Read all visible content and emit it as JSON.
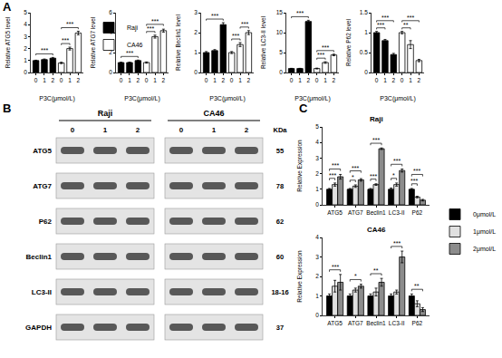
{
  "panel_labels": [
    "A",
    "B",
    "C"
  ],
  "chart_data": [
    {
      "type": "bar",
      "y_label": "Relative ATG5 level",
      "x_label": "P3C(μmol/L)",
      "categories": [
        "0",
        "1",
        "2",
        "0",
        "1",
        "2"
      ],
      "series": [
        {
          "name": "Raji",
          "color": "#000000",
          "values": [
            1.0,
            1.08,
            1.2,
            null,
            null,
            null
          ],
          "errors": [
            0.03,
            0.05,
            0.06,
            null,
            null,
            null
          ]
        },
        {
          "name": "CA46",
          "color": "#ffffff",
          "values": [
            null,
            null,
            null,
            0.8,
            2.0,
            3.3
          ],
          "errors": [
            null,
            null,
            null,
            0.06,
            0.12,
            0.15
          ]
        }
      ],
      "ylim": [
        0,
        5
      ],
      "yticks": [
        0,
        1,
        2,
        3,
        4,
        5
      ],
      "legend": "right",
      "significance": [
        {
          "from": [
            0,
            0
          ],
          "to": [
            2,
            0
          ],
          "label": "***"
        },
        {
          "from": [
            3,
            1
          ],
          "to": [
            4,
            1
          ],
          "label": "***"
        },
        {
          "from": [
            3,
            1
          ],
          "to": [
            5,
            1
          ],
          "label": "***"
        }
      ]
    },
    {
      "type": "bar",
      "y_label": "Relative ATG7 level",
      "x_label": "P3C(μmol/L)",
      "categories": [
        "0",
        "1",
        "2",
        "0",
        "1",
        "2"
      ],
      "series": [
        {
          "name": "Raji",
          "color": "#000000",
          "values": [
            1.0,
            1.0,
            1.2,
            null,
            null,
            null
          ],
          "errors": [
            0.03,
            0.04,
            0.05,
            null,
            null,
            null
          ]
        },
        {
          "name": "CA46",
          "color": "#ffffff",
          "values": [
            null,
            null,
            null,
            1.0,
            3.6,
            4.2
          ],
          "errors": [
            null,
            null,
            null,
            0.06,
            0.15,
            0.15
          ]
        }
      ],
      "ylim": [
        0,
        6
      ],
      "yticks": [
        0,
        2,
        4,
        6
      ],
      "significance": [
        {
          "from": [
            0,
            0
          ],
          "to": [
            2,
            0
          ],
          "label": "***"
        },
        {
          "from": [
            3,
            1
          ],
          "to": [
            4,
            1
          ],
          "label": "***"
        },
        {
          "from": [
            3,
            1
          ],
          "to": [
            5,
            1
          ],
          "label": "***"
        }
      ]
    },
    {
      "type": "bar",
      "y_label": "Relative Beclin1 level",
      "x_label": "P3C(μmol/L)",
      "categories": [
        "0",
        "1",
        "2",
        "0",
        "1",
        "2"
      ],
      "series": [
        {
          "name": "Raji",
          "color": "#000000",
          "values": [
            1.0,
            1.1,
            2.4,
            null,
            null,
            null
          ],
          "errors": [
            0.05,
            0.05,
            0.1,
            null,
            null,
            null
          ]
        },
        {
          "name": "CA46",
          "color": "#ffffff",
          "values": [
            null,
            null,
            null,
            1.0,
            1.4,
            2.0
          ],
          "errors": [
            null,
            null,
            null,
            0.05,
            0.1,
            0.1
          ]
        }
      ],
      "ylim": [
        0,
        3
      ],
      "yticks": [
        0,
        1,
        2,
        3
      ],
      "significance": [
        {
          "from": [
            0,
            0
          ],
          "to": [
            2,
            0
          ],
          "label": "***"
        },
        {
          "from": [
            3,
            1
          ],
          "to": [
            4,
            1
          ],
          "label": "***"
        },
        {
          "from": [
            4,
            1
          ],
          "to": [
            5,
            1
          ],
          "label": "***"
        }
      ]
    },
    {
      "type": "bar",
      "y_label": "Relative LC3-II level",
      "x_label": "P3C(μmol/L)",
      "categories": [
        "0",
        "1",
        "2",
        "0",
        "1",
        "2"
      ],
      "series": [
        {
          "name": "Raji",
          "color": "#000000",
          "values": [
            1.0,
            1.0,
            12.8,
            null,
            null,
            null
          ],
          "errors": [
            0.05,
            0.05,
            0.3,
            null,
            null,
            null
          ]
        },
        {
          "name": "CA46",
          "color": "#ffffff",
          "values": [
            null,
            null,
            null,
            1.0,
            2.5,
            4.4
          ],
          "errors": [
            null,
            null,
            null,
            0.1,
            0.2,
            0.2
          ]
        }
      ],
      "ylim": [
        0,
        15
      ],
      "yticks": [
        0,
        5,
        10,
        15
      ],
      "significance": [
        {
          "from": [
            0,
            0
          ],
          "to": [
            2,
            0
          ],
          "label": "***"
        },
        {
          "from": [
            3,
            1
          ],
          "to": [
            4,
            1
          ],
          "label": "***"
        },
        {
          "from": [
            3,
            1
          ],
          "to": [
            5,
            1
          ],
          "label": "***"
        }
      ]
    },
    {
      "type": "bar",
      "y_label": "Relative P62 level",
      "x_label": "P3C(μmol/L)",
      "categories": [
        "0",
        "1",
        "2",
        "0",
        "1",
        "2"
      ],
      "series": [
        {
          "name": "Raji",
          "color": "#000000",
          "values": [
            1.0,
            0.8,
            0.45,
            null,
            null,
            null
          ],
          "errors": [
            0.03,
            0.03,
            0.03,
            null,
            null,
            null
          ]
        },
        {
          "name": "CA46",
          "color": "#ffffff",
          "values": [
            null,
            null,
            null,
            1.0,
            0.7,
            0.3
          ],
          "errors": [
            null,
            null,
            null,
            0.03,
            0.1,
            0.03
          ]
        }
      ],
      "ylim": [
        0,
        1.5
      ],
      "yticks": [
        0,
        0.5,
        1,
        1.5
      ],
      "significance": [
        {
          "from": [
            0,
            0
          ],
          "to": [
            1,
            0
          ],
          "label": "***"
        },
        {
          "from": [
            0,
            0
          ],
          "to": [
            2,
            0
          ],
          "label": "***"
        },
        {
          "from": [
            3,
            1
          ],
          "to": [
            4,
            1
          ],
          "label": "**"
        },
        {
          "from": [
            3,
            1
          ],
          "to": [
            5,
            1
          ],
          "label": "***"
        }
      ]
    },
    {
      "type": "bar",
      "title": "Raji",
      "y_label": "Relative Expression",
      "categories": [
        "ATG5",
        "ATG7",
        "Beclin1",
        "LC3-II",
        "P62"
      ],
      "series": [
        {
          "name": "0μmol/L",
          "color": "#000000",
          "values": [
            1.0,
            1.0,
            1.0,
            1.0,
            1.0
          ],
          "errors": [
            0.05,
            0.05,
            0.05,
            0.08,
            0.05
          ]
        },
        {
          "name": "1μmol/L",
          "color": "#e0e0e0",
          "values": [
            1.3,
            1.2,
            1.3,
            1.3,
            0.5
          ],
          "errors": [
            0.1,
            0.08,
            0.05,
            0.1,
            0.05
          ]
        },
        {
          "name": "2μmol/L",
          "color": "#8c8c8c",
          "values": [
            1.8,
            1.6,
            3.6,
            2.2,
            0.3
          ],
          "errors": [
            0.15,
            0.08,
            0.05,
            0.1,
            0.05
          ]
        }
      ],
      "ylim": [
        0,
        5
      ],
      "yticks": [
        0,
        1,
        2,
        3,
        4,
        5
      ],
      "legend": "right",
      "significance": [
        {
          "from": [
            0,
            0
          ],
          "to": [
            0,
            1
          ],
          "label": "***"
        },
        {
          "from": [
            0,
            0
          ],
          "to": [
            0,
            2
          ],
          "label": "***"
        },
        {
          "from": [
            1,
            0
          ],
          "to": [
            1,
            1
          ],
          "label": "*"
        },
        {
          "from": [
            1,
            0
          ],
          "to": [
            1,
            2
          ],
          "label": "***"
        },
        {
          "from": [
            2,
            0
          ],
          "to": [
            2,
            1
          ],
          "label": "***"
        },
        {
          "from": [
            2,
            0
          ],
          "to": [
            2,
            2
          ],
          "label": "***"
        },
        {
          "from": [
            3,
            0
          ],
          "to": [
            3,
            1
          ],
          "label": "*"
        },
        {
          "from": [
            3,
            0
          ],
          "to": [
            3,
            2
          ],
          "label": "***"
        },
        {
          "from": [
            4,
            0
          ],
          "to": [
            4,
            1
          ],
          "label": "***"
        },
        {
          "from": [
            4,
            0
          ],
          "to": [
            4,
            2
          ],
          "label": "***"
        }
      ]
    },
    {
      "type": "bar",
      "title": "CA46",
      "y_label": "Relative Expression",
      "categories": [
        "ATG5",
        "ATG7",
        "Beclin1",
        "LC3-II",
        "P62"
      ],
      "series": [
        {
          "name": "0μmol/L",
          "color": "#000000",
          "values": [
            1.0,
            1.0,
            1.0,
            1.0,
            1.0
          ],
          "errors": [
            0.1,
            0.1,
            0.1,
            0.1,
            0.1
          ]
        },
        {
          "name": "1μmol/L",
          "color": "#e0e0e0",
          "values": [
            1.5,
            1.3,
            1.2,
            1.2,
            0.6
          ],
          "errors": [
            0.3,
            0.1,
            0.2,
            0.1,
            0.15
          ]
        },
        {
          "name": "2μmol/L",
          "color": "#8c8c8c",
          "values": [
            1.7,
            1.5,
            1.7,
            3.0,
            0.3
          ],
          "errors": [
            0.4,
            0.1,
            0.2,
            0.3,
            0.1
          ]
        }
      ],
      "ylim": [
        0,
        4
      ],
      "yticks": [
        0,
        1,
        2,
        3,
        4
      ],
      "significance": [
        {
          "from": [
            0,
            0
          ],
          "to": [
            0,
            2
          ],
          "label": "***"
        },
        {
          "from": [
            1,
            0
          ],
          "to": [
            1,
            2
          ],
          "label": "*"
        },
        {
          "from": [
            2,
            0
          ],
          "to": [
            2,
            2
          ],
          "label": "**"
        },
        {
          "from": [
            3,
            0
          ],
          "to": [
            3,
            2
          ],
          "label": "***"
        },
        {
          "from": [
            4,
            0
          ],
          "to": [
            4,
            2
          ],
          "label": "**"
        }
      ]
    }
  ],
  "blot": {
    "cell_lines": [
      "Raji",
      "CA46"
    ],
    "doses": [
      "0",
      "1",
      "2"
    ],
    "kda_header": "KDa",
    "rows": [
      {
        "protein": "ATG5",
        "kda": "55"
      },
      {
        "protein": "ATG7",
        "kda": "78"
      },
      {
        "protein": "P62",
        "kda": "62"
      },
      {
        "protein": "Beclin1",
        "kda": "60"
      },
      {
        "protein": "LC3-II",
        "kda": "18-16"
      },
      {
        "protein": "GAPDH",
        "kda": "37"
      }
    ]
  }
}
